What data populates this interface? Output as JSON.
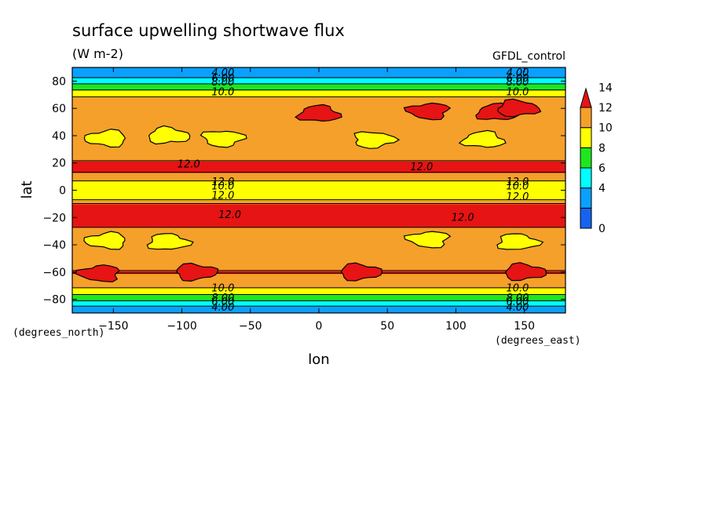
{
  "chart_data": {
    "type": "heatmap",
    "title": "surface upwelling shortwave flux",
    "units": "(W m-2)",
    "dataset": "GFDL_control",
    "xlabel": "lon",
    "ylabel": "lat",
    "x_units": "(degrees_east)",
    "y_units": "(degrees_north)",
    "xlim": [
      -180,
      180
    ],
    "ylim": [
      -90,
      90
    ],
    "x_ticks": [
      -150,
      -100,
      -50,
      0,
      50,
      100,
      150
    ],
    "y_ticks": [
      80,
      60,
      40,
      20,
      0,
      -20,
      -40,
      -60,
      -80
    ],
    "colorbar": {
      "levels": [
        0,
        2,
        4,
        6,
        8,
        10,
        12,
        14
      ],
      "tick_labels": [
        "0",
        "4",
        "6",
        "8",
        "10",
        "12",
        "14"
      ],
      "colors": [
        "#1464f0",
        "#0aa0ff",
        "#00ffff",
        "#1ee61e",
        "#ffff00",
        "#f5a02a",
        "#e61414"
      ],
      "extend": "max"
    },
    "lat_profile": {
      "lat": [
        -90,
        -86,
        -83,
        -80,
        -77,
        -74,
        -71,
        -68,
        -65,
        -60,
        -50,
        -40,
        -30,
        -25,
        -15,
        -10,
        -8,
        -6,
        -4,
        -2,
        0,
        2,
        4,
        6,
        8,
        10,
        15,
        20,
        25,
        30,
        40,
        50,
        60,
        65,
        68,
        71,
        74,
        77,
        80,
        83,
        86,
        90
      ],
      "flux": [
        3.0,
        3.5,
        5.0,
        6.5,
        7.8,
        9.0,
        10.2,
        11.0,
        11.5,
        12.1,
        11.2,
        10.6,
        11.5,
        12.4,
        12.5,
        12.2,
        10.5,
        9.5,
        8.5,
        9.0,
        9.5,
        9.0,
        8.6,
        9.6,
        10.6,
        11.5,
        12.3,
        12.4,
        11.2,
        10.5,
        10.7,
        10.6,
        11.2,
        11.0,
        10.2,
        9.0,
        7.8,
        6.5,
        5.0,
        3.8,
        3.2,
        3.0
      ]
    },
    "patches": [
      {
        "level": 12,
        "lon": -160,
        "lat": -61
      },
      {
        "level": 12,
        "lon": -90,
        "lat": -60
      },
      {
        "level": 12,
        "lon": 30,
        "lat": -60
      },
      {
        "level": 12,
        "lon": 150,
        "lat": -60
      },
      {
        "level": 12,
        "lon": 0,
        "lat": 56
      },
      {
        "level": 12,
        "lon": 80,
        "lat": 58
      },
      {
        "level": 12,
        "lon": 130,
        "lat": 57
      },
      {
        "level": 12,
        "lon": 145,
        "lat": 60
      },
      {
        "level": 8,
        "lon": -155,
        "lat": 38
      },
      {
        "level": 8,
        "lon": -110,
        "lat": 40
      },
      {
        "level": 8,
        "lon": -70,
        "lat": 38
      },
      {
        "level": 8,
        "lon": 40,
        "lat": 37
      },
      {
        "level": 8,
        "lon": 120,
        "lat": 37
      },
      {
        "level": 8,
        "lon": -155,
        "lat": -37
      },
      {
        "level": 8,
        "lon": -110,
        "lat": -38
      },
      {
        "level": 8,
        "lon": 80,
        "lat": -36
      },
      {
        "level": 8,
        "lon": 145,
        "lat": -38
      }
    ],
    "contour_labels": [
      {
        "text": "4.00",
        "lon": -70,
        "lat": 86
      },
      {
        "text": "6.00",
        "lon": -70,
        "lat": 82
      },
      {
        "text": "8.00",
        "lon": -70,
        "lat": 79
      },
      {
        "text": "10.0",
        "lon": -70,
        "lat": 72
      },
      {
        "text": "4.00",
        "lon": 145,
        "lat": 86
      },
      {
        "text": "6.00",
        "lon": 145,
        "lat": 82
      },
      {
        "text": "8.00",
        "lon": 145,
        "lat": 79
      },
      {
        "text": "10.0",
        "lon": 145,
        "lat": 72
      },
      {
        "text": "12.0",
        "lon": -95,
        "lat": 19
      },
      {
        "text": "12.0",
        "lon": 75,
        "lat": 17
      },
      {
        "text": "12.0",
        "lon": -70,
        "lat": 6
      },
      {
        "text": "10.0",
        "lon": -70,
        "lat": 3
      },
      {
        "text": "12.0",
        "lon": -70,
        "lat": -4
      },
      {
        "text": "12.0",
        "lon": 145,
        "lat": 6
      },
      {
        "text": "10.0",
        "lon": 145,
        "lat": 3
      },
      {
        "text": "12.0",
        "lon": 145,
        "lat": -5
      },
      {
        "text": "12.0",
        "lon": -65,
        "lat": -18
      },
      {
        "text": "12.0",
        "lon": 105,
        "lat": -20
      },
      {
        "text": "10.0",
        "lon": -70,
        "lat": -72
      },
      {
        "text": "8.00",
        "lon": -70,
        "lat": -79
      },
      {
        "text": "6.00",
        "lon": -70,
        "lat": -82
      },
      {
        "text": "4.00",
        "lon": -70,
        "lat": -86
      },
      {
        "text": "10.0",
        "lon": 145,
        "lat": -72
      },
      {
        "text": "8.00",
        "lon": 145,
        "lat": -79
      },
      {
        "text": "6.00",
        "lon": 145,
        "lat": -82
      },
      {
        "text": "4.00",
        "lon": 145,
        "lat": -86
      }
    ]
  }
}
